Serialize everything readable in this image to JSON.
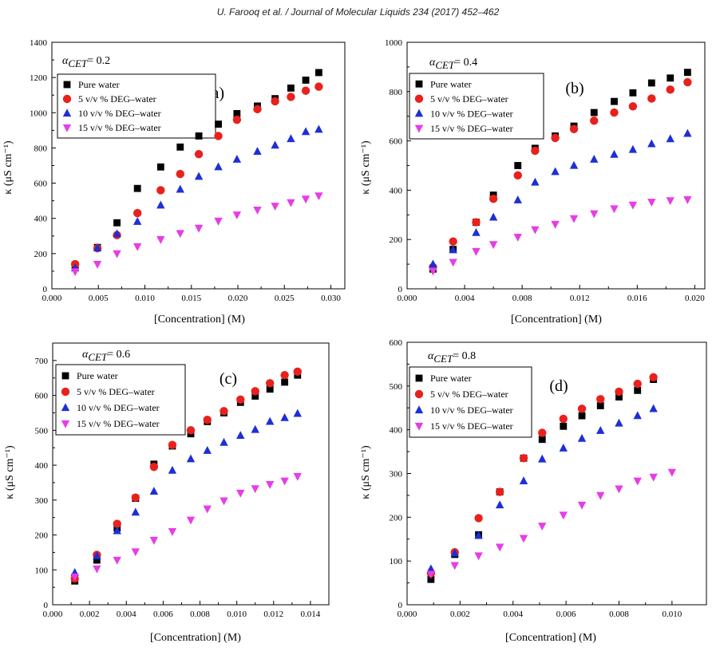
{
  "header": {
    "citation": "U. Farooq et al. / Journal of Molecular Liquids 234 (2017) 452–462"
  },
  "colors": {
    "pure_water": "#000000",
    "deg5": "#e8211d",
    "deg10": "#1d2fd6",
    "deg15": "#e63de6"
  },
  "chart_data": [
    {
      "type": "scatter",
      "panel_label": "(a)",
      "alpha_symbol": "α",
      "alpha_sub": "CET",
      "alpha_text": "= 0.2",
      "xlabel": "[Concentration] (M)",
      "ylabel": "κ (μS cm⁻¹)",
      "xlim": [
        0.0,
        0.0315
      ],
      "ylim": [
        0,
        1400
      ],
      "xticks": [
        "0.000",
        "0.005",
        "0.010",
        "0.015",
        "0.020",
        "0.025",
        "0.030"
      ],
      "xtick_values": [
        0.0,
        0.005,
        0.01,
        0.015,
        0.02,
        0.025,
        0.03
      ],
      "yticks": [
        "0",
        "200",
        "400",
        "600",
        "800",
        "1000",
        "1200",
        "1400"
      ],
      "ytick_values": [
        0,
        200,
        400,
        600,
        800,
        1000,
        1200,
        1400
      ],
      "legend_position": "top-left",
      "series": [
        {
          "name": "Pure water",
          "marker": "square",
          "color": "#000000",
          "x": [
            0.0025,
            0.0049,
            0.007,
            0.0092,
            0.0117,
            0.0138,
            0.0158,
            0.0179,
            0.0199,
            0.0221,
            0.024,
            0.0257,
            0.0273,
            0.0287
          ],
          "y": [
            135,
            235,
            375,
            570,
            692,
            805,
            868,
            935,
            995,
            1038,
            1080,
            1140,
            1185,
            1228
          ]
        },
        {
          "name": "5 v/v % DEG–water",
          "marker": "circle",
          "color": "#e8211d",
          "x": [
            0.0025,
            0.0049,
            0.007,
            0.0092,
            0.0117,
            0.0138,
            0.0158,
            0.0179,
            0.0199,
            0.0221,
            0.024,
            0.0257,
            0.0273,
            0.0287
          ],
          "y": [
            140,
            230,
            305,
            430,
            560,
            652,
            765,
            868,
            960,
            1020,
            1065,
            1090,
            1125,
            1148
          ]
        },
        {
          "name": "10 v/v % DEG–water",
          "marker": "triangle-up",
          "color": "#1d2fd6",
          "x": [
            0.0025,
            0.0049,
            0.007,
            0.0092,
            0.0117,
            0.0138,
            0.0158,
            0.0179,
            0.0199,
            0.0221,
            0.024,
            0.0257,
            0.0273,
            0.0287
          ],
          "y": [
            118,
            232,
            312,
            382,
            475,
            565,
            638,
            692,
            735,
            780,
            815,
            852,
            892,
            905
          ]
        },
        {
          "name": "15 v/v % DEG–water",
          "marker": "triangle-down",
          "color": "#e63de6",
          "x": [
            0.0025,
            0.0049,
            0.007,
            0.0092,
            0.0117,
            0.0138,
            0.0158,
            0.0179,
            0.0199,
            0.0221,
            0.024,
            0.0257,
            0.0273,
            0.0287
          ],
          "y": [
            98,
            140,
            200,
            240,
            280,
            315,
            345,
            385,
            420,
            448,
            470,
            490,
            510,
            528
          ]
        }
      ]
    },
    {
      "type": "scatter",
      "panel_label": "(b)",
      "alpha_symbol": "α",
      "alpha_sub": "CET",
      "alpha_text": "= 0.4",
      "xlabel": "[Concentration] (M)",
      "ylabel": "κ (μS cm⁻¹)",
      "xlim": [
        0.0,
        0.0207
      ],
      "ylim": [
        0,
        1000
      ],
      "xticks": [
        "0.000",
        "0.004",
        "0.008",
        "0.012",
        "0.016",
        "0.020"
      ],
      "xtick_values": [
        0.0,
        0.004,
        0.008,
        0.012,
        0.016,
        0.02
      ],
      "yticks": [
        "0",
        "200",
        "400",
        "600",
        "800",
        "1000"
      ],
      "ytick_values": [
        0,
        200,
        400,
        600,
        800,
        1000
      ],
      "legend_position": "top-left",
      "series": [
        {
          "name": "Pure water",
          "marker": "square",
          "color": "#000000",
          "x": [
            0.0018,
            0.0032,
            0.0048,
            0.006,
            0.0077,
            0.0089,
            0.0103,
            0.0116,
            0.013,
            0.0144,
            0.0157,
            0.017,
            0.0183,
            0.0195
          ],
          "y": [
            80,
            160,
            270,
            380,
            500,
            570,
            620,
            660,
            715,
            760,
            795,
            835,
            855,
            878
          ]
        },
        {
          "name": "5 v/v % DEG–water",
          "marker": "circle",
          "color": "#e8211d",
          "x": [
            0.0018,
            0.0032,
            0.0048,
            0.006,
            0.0077,
            0.0089,
            0.0103,
            0.0116,
            0.013,
            0.0144,
            0.0157,
            0.017,
            0.0183,
            0.0195
          ],
          "y": [
            88,
            192,
            270,
            365,
            460,
            560,
            612,
            648,
            682,
            715,
            740,
            772,
            808,
            838
          ]
        },
        {
          "name": "10 v/v % DEG–water",
          "marker": "triangle-up",
          "color": "#1d2fd6",
          "x": [
            0.0018,
            0.0032,
            0.0048,
            0.006,
            0.0077,
            0.0089,
            0.0103,
            0.0116,
            0.013,
            0.0144,
            0.0157,
            0.017,
            0.0183,
            0.0195
          ],
          "y": [
            100,
            158,
            228,
            290,
            360,
            432,
            475,
            500,
            525,
            545,
            565,
            588,
            608,
            630
          ]
        },
        {
          "name": "15 v/v % DEG–water",
          "marker": "triangle-down",
          "color": "#e63de6",
          "x": [
            0.0018,
            0.0032,
            0.0048,
            0.006,
            0.0077,
            0.0089,
            0.0103,
            0.0116,
            0.013,
            0.0144,
            0.0157,
            0.017,
            0.0183,
            0.0195
          ],
          "y": [
            72,
            108,
            152,
            180,
            210,
            240,
            262,
            285,
            305,
            325,
            340,
            352,
            358,
            362
          ]
        }
      ]
    },
    {
      "type": "scatter",
      "panel_label": "(c)",
      "alpha_symbol": "α",
      "alpha_sub": "CET",
      "alpha_text": "= 0.6",
      "xlabel": "[Concentration] (M)",
      "ylabel": "κ (μS cm⁻¹)",
      "xlim": [
        0.0,
        0.015
      ],
      "ylim": [
        0,
        750
      ],
      "xticks": [
        "0.000",
        "0.002",
        "0.004",
        "0.006",
        "0.008",
        "0.010",
        "0.012",
        "0.014"
      ],
      "xtick_values": [
        0.0,
        0.002,
        0.004,
        0.006,
        0.008,
        0.01,
        0.012,
        0.014
      ],
      "yticks": [
        "0",
        "100",
        "200",
        "300",
        "400",
        "500",
        "600",
        "700"
      ],
      "ytick_values": [
        0,
        100,
        200,
        300,
        400,
        500,
        600,
        700
      ],
      "legend_position": "top-left",
      "series": [
        {
          "name": "Pure water",
          "marker": "square",
          "color": "#000000",
          "x": [
            0.0012,
            0.0024,
            0.0035,
            0.0045,
            0.0055,
            0.0065,
            0.0075,
            0.0084,
            0.0093,
            0.0102,
            0.011,
            0.0118,
            0.0126,
            0.0133
          ],
          "y": [
            68,
            128,
            220,
            305,
            403,
            455,
            490,
            525,
            550,
            580,
            598,
            618,
            638,
            658
          ]
        },
        {
          "name": "5  v/v %  DEG–water",
          "marker": "circle",
          "color": "#e8211d",
          "x": [
            0.0012,
            0.0024,
            0.0035,
            0.0045,
            0.0055,
            0.0065,
            0.0075,
            0.0084,
            0.0093,
            0.0102,
            0.011,
            0.0118,
            0.0126,
            0.0133
          ],
          "y": [
            75,
            143,
            232,
            307,
            395,
            458,
            500,
            530,
            555,
            588,
            612,
            635,
            658,
            668
          ]
        },
        {
          "name": "10  v/v %  DEG–water",
          "marker": "triangle-up",
          "color": "#1d2fd6",
          "x": [
            0.0012,
            0.0024,
            0.0035,
            0.0045,
            0.0055,
            0.0065,
            0.0075,
            0.0084,
            0.0093,
            0.0102,
            0.011,
            0.0118,
            0.0126,
            0.0133
          ],
          "y": [
            92,
            140,
            212,
            265,
            325,
            385,
            418,
            442,
            465,
            485,
            502,
            525,
            536,
            548
          ]
        },
        {
          "name": "15  v/v %  DEG–water",
          "marker": "triangle-down",
          "color": "#e63de6",
          "x": [
            0.0012,
            0.0024,
            0.0035,
            0.0045,
            0.0055,
            0.0065,
            0.0075,
            0.0084,
            0.0093,
            0.0102,
            0.011,
            0.0118,
            0.0126,
            0.0133
          ],
          "y": [
            80,
            103,
            128,
            152,
            185,
            210,
            243,
            275,
            298,
            320,
            333,
            345,
            355,
            368
          ]
        }
      ]
    },
    {
      "type": "scatter",
      "panel_label": "(d)",
      "alpha_symbol": "α",
      "alpha_sub": "CET",
      "alpha_text": "= 0.8",
      "xlabel": "[Concentration] (M)",
      "ylabel": "κ (μS cm⁻¹)",
      "xlim": [
        0.0,
        0.0113
      ],
      "ylim": [
        0,
        600
      ],
      "xticks": [
        "0.000",
        "0.002",
        "0.004",
        "0.006",
        "0.008",
        "0.010"
      ],
      "xtick_values": [
        0.0,
        0.002,
        0.004,
        0.006,
        0.008,
        0.01
      ],
      "yticks": [
        "0",
        "100",
        "200",
        "300",
        "400",
        "500",
        "600"
      ],
      "ytick_values": [
        0,
        100,
        200,
        300,
        400,
        500,
        600
      ],
      "legend_position": "top-left",
      "series": [
        {
          "name": "Pure water",
          "marker": "square",
          "color": "#000000",
          "x": [
            0.0009,
            0.0018,
            0.0027,
            0.0035,
            0.0044,
            0.0051,
            0.0059,
            0.0066,
            0.0073,
            0.008,
            0.0087,
            0.0093
          ],
          "y": [
            58,
            115,
            160,
            258,
            335,
            378,
            408,
            432,
            455,
            475,
            490,
            515
          ]
        },
        {
          "name": "5  v/v %  DEG–water",
          "marker": "circle",
          "color": "#e8211d",
          "x": [
            0.0009,
            0.0018,
            0.0027,
            0.0035,
            0.0044,
            0.0051,
            0.0059,
            0.0066,
            0.0073,
            0.008,
            0.0087,
            0.0093
          ],
          "y": [
            72,
            120,
            198,
            258,
            335,
            393,
            425,
            448,
            470,
            487,
            505,
            520
          ]
        },
        {
          "name": "10  v/v %  DEG–water",
          "marker": "triangle-up",
          "color": "#1d2fd6",
          "x": [
            0.0009,
            0.0018,
            0.0027,
            0.0035,
            0.0044,
            0.0051,
            0.0059,
            0.0066,
            0.0073,
            0.008,
            0.0087,
            0.0093
          ],
          "y": [
            82,
            118,
            158,
            228,
            283,
            333,
            358,
            380,
            398,
            415,
            432,
            448
          ]
        },
        {
          "name": "15  v/v %  DEG–water",
          "marker": "triangle-down",
          "color": "#e63de6",
          "x": [
            0.0009,
            0.0018,
            0.0027,
            0.0035,
            0.0044,
            0.0051,
            0.0059,
            0.0066,
            0.0073,
            0.008,
            0.0087,
            0.0093,
            0.01
          ],
          "y": [
            70,
            90,
            112,
            132,
            152,
            180,
            205,
            228,
            250,
            265,
            283,
            292,
            303
          ]
        }
      ]
    }
  ]
}
